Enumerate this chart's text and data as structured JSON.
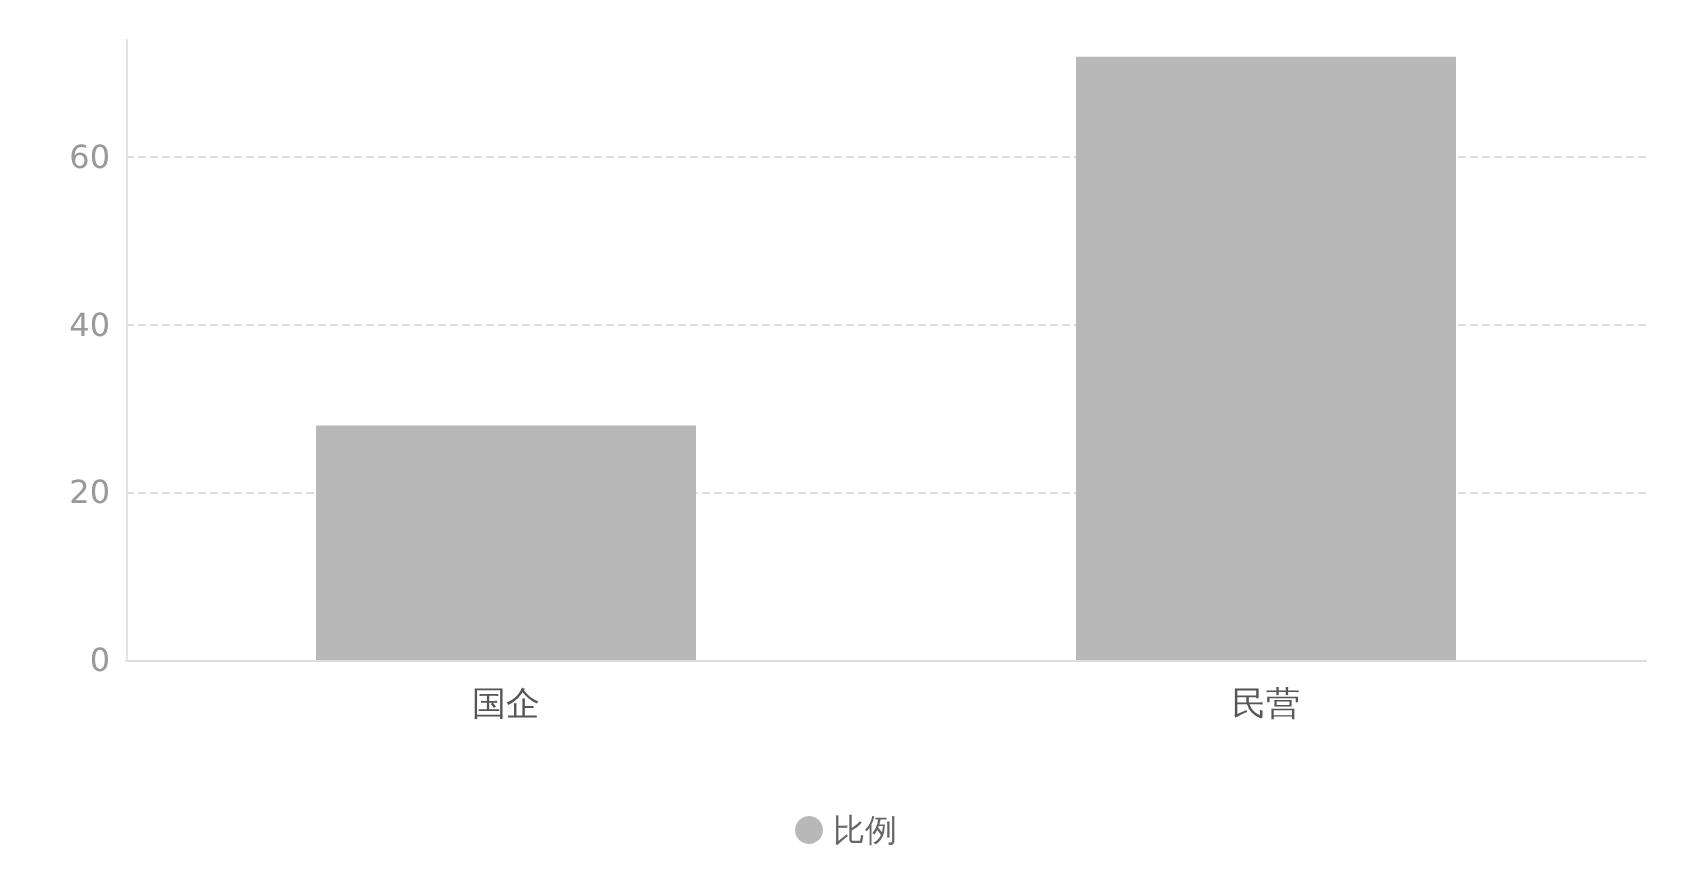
{
  "chart_data": {
    "type": "bar",
    "categories": [
      "国企",
      "民营"
    ],
    "series": [
      {
        "name": "比例",
        "color": "#b8b8b8",
        "values": [
          28,
          72
        ]
      }
    ],
    "ylim": [
      0,
      74
    ],
    "yticks": [
      0,
      20,
      40,
      60
    ],
    "grid": "y",
    "legend": "bottom"
  }
}
